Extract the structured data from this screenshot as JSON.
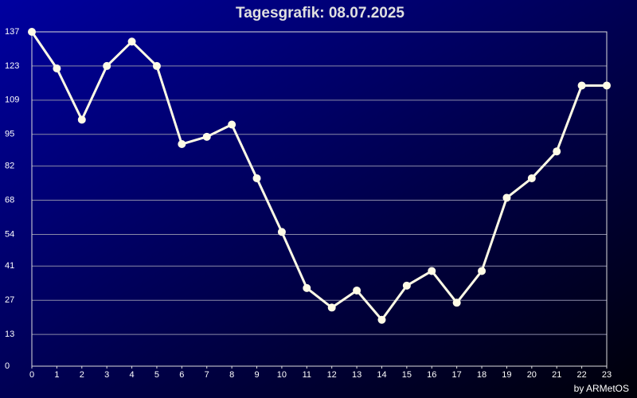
{
  "chart_data": {
    "type": "line",
    "title": "Tagesgrafik: 08.07.2025",
    "footer": "by ARMetOS",
    "x": [
      0,
      1,
      2,
      3,
      4,
      5,
      6,
      7,
      8,
      9,
      10,
      11,
      12,
      13,
      14,
      15,
      16,
      17,
      18,
      19,
      20,
      21,
      22,
      23
    ],
    "series": [
      {
        "color": "#fffbe6",
        "values": [
          137,
          122,
          101,
          123,
          133,
          123,
          91,
          94,
          99,
          77,
          55,
          32,
          24,
          31,
          19,
          33,
          39,
          26,
          39,
          69,
          77,
          88,
          115,
          115
        ]
      }
    ],
    "xlim": [
      0,
      23
    ],
    "xticks": [
      0,
      1,
      2,
      3,
      4,
      5,
      6,
      7,
      8,
      9,
      10,
      11,
      12,
      13,
      14,
      15,
      16,
      17,
      18,
      19,
      20,
      21,
      22,
      23
    ],
    "ylim": [
      0,
      137
    ],
    "yticks": [
      0,
      13,
      27,
      41,
      54,
      68,
      82,
      95,
      109,
      123,
      137
    ],
    "grid": true
  }
}
